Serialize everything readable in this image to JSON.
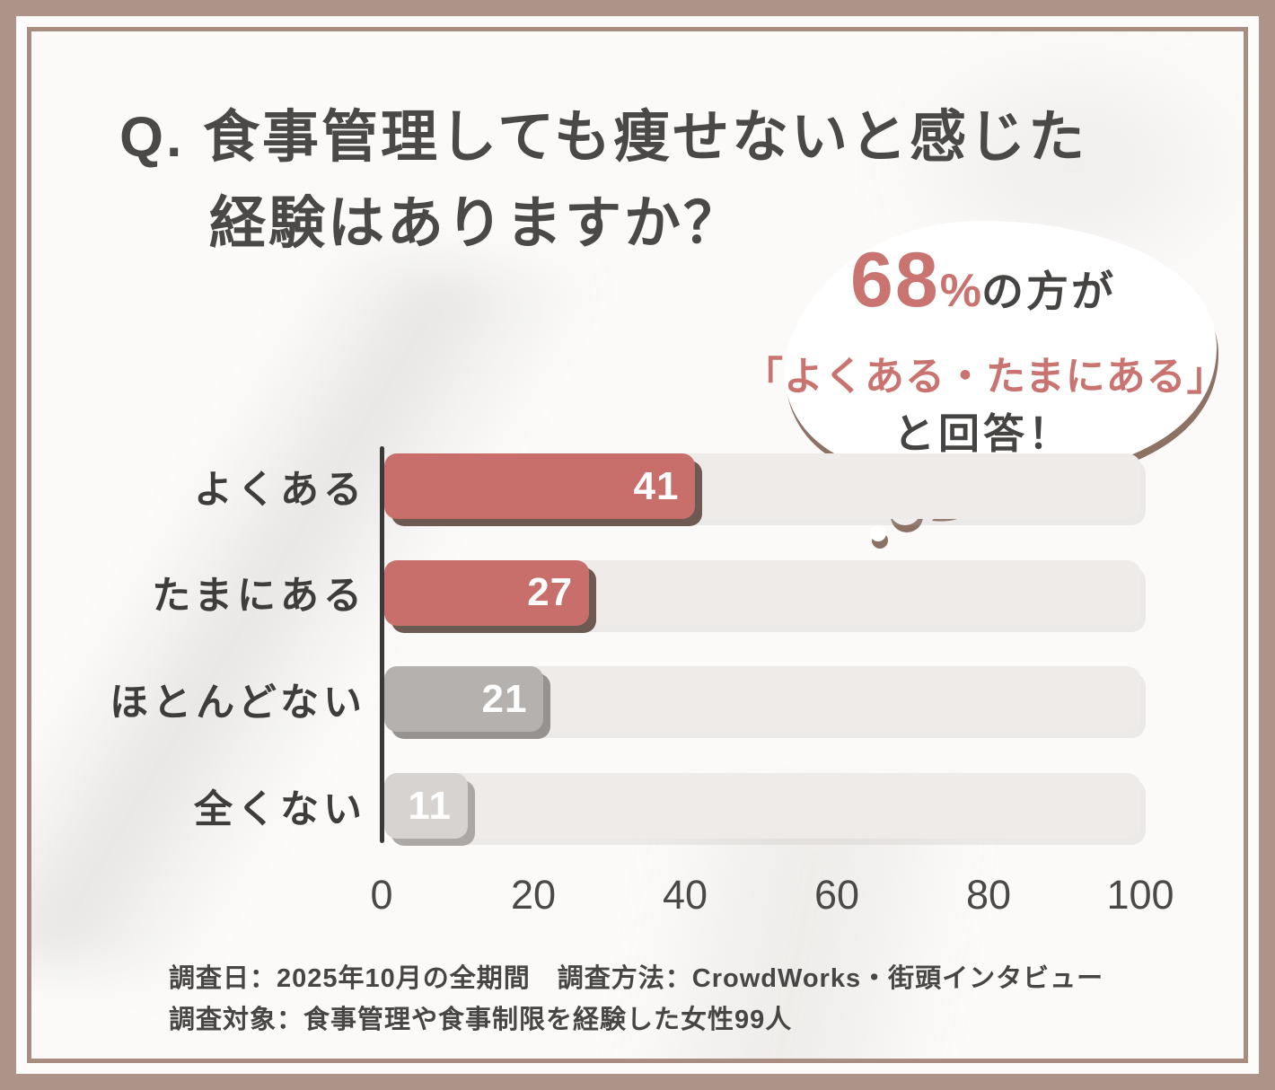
{
  "title": {
    "line1": "Q. 食事管理しても痩せないと感じた",
    "line2": "経験はありますか？"
  },
  "bubble": {
    "stat": "68",
    "percent_sign": "%",
    "stat_suffix": "の方が",
    "line2": "「よくある・たまにある」",
    "line3": "と回答！"
  },
  "chart_data": {
    "type": "bar",
    "orientation": "horizontal",
    "title": "食事管理しても痩せないと感じた経験はありますか？",
    "categories": [
      "よくある",
      "たまにある",
      "ほとんどない",
      "全くない"
    ],
    "values": [
      41,
      27,
      21,
      11
    ],
    "value_labels": [
      "41",
      "27",
      "21",
      "11"
    ],
    "xlim": [
      0,
      100
    ],
    "x_ticks": [
      "0",
      "20",
      "40",
      "60",
      "80",
      "100"
    ],
    "grid": false,
    "legend": false,
    "bar_colors": [
      "#c96f6b",
      "#c96f6b",
      "#b4b1af",
      "#d6d3d1"
    ],
    "bar_shadow_colors": [
      "#6d5a52",
      "#6d5a52",
      "#96928f",
      "#aca8a5"
    ],
    "track_color": "#eeebe9",
    "highlight_note": "68%の方が「よくある・たまにある」と回答！"
  },
  "footer": {
    "line1": "調査日：2025年10月の全期間　調査方法：CrowdWorks・街頭インタビュー",
    "line2": "調査対象：食事管理や食事制限を経験した女性99人"
  },
  "colors": {
    "accent_red": "#c96f6b",
    "gray_bar": "#b4b1af",
    "light_gray_bar": "#d6d3d1",
    "track": "#eeebe9",
    "axis": "#3b3938",
    "text_dark": "#454443",
    "frame_brown": "#ae9488",
    "panel_border": "#a98d81",
    "bubble_shadow": "#8c7164",
    "value_text": "#ffffff"
  }
}
